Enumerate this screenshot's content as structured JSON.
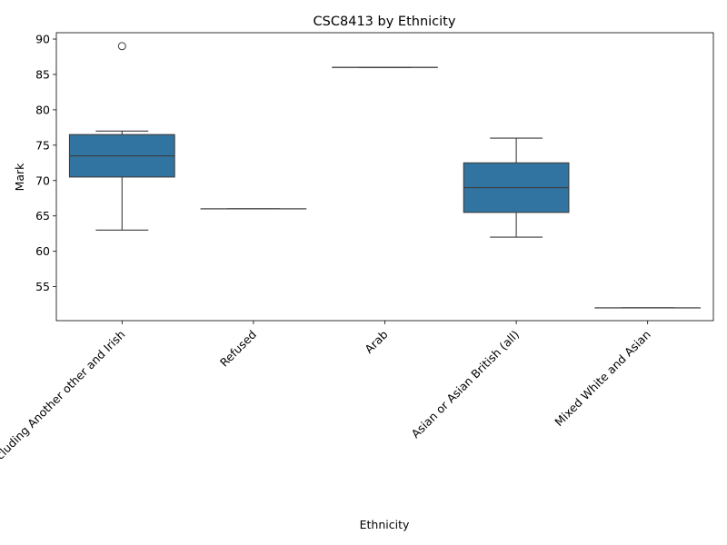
{
  "chart_data": {
    "type": "box",
    "title": "CSC8413 by Ethnicity",
    "xlabel": "Ethnicity",
    "ylabel": "Mark",
    "ylim": [
      50.2,
      90.9
    ],
    "yticks": [
      55,
      60,
      65,
      70,
      75,
      80,
      85,
      90
    ],
    "grid": false,
    "color": "#3274a1",
    "categories": [
      "White including Another other and Irish",
      "Refused",
      "Arab",
      "Asian or Asian British (all)",
      "Mixed White and Asian"
    ],
    "boxes": [
      {
        "whisker_low": 63,
        "q1": 70.5,
        "median": 73.5,
        "q3": 76.5,
        "whisker_high": 77,
        "outliers": [
          89
        ]
      },
      {
        "whisker_low": 66,
        "q1": 66,
        "median": 66,
        "q3": 66,
        "whisker_high": 66,
        "outliers": []
      },
      {
        "whisker_low": 86,
        "q1": 86,
        "median": 86,
        "q3": 86,
        "whisker_high": 86,
        "outliers": []
      },
      {
        "whisker_low": 62,
        "q1": 65.5,
        "median": 69,
        "q3": 72.5,
        "whisker_high": 76,
        "outliers": []
      },
      {
        "whisker_low": 52,
        "q1": 52,
        "median": 52,
        "q3": 52,
        "whisker_high": 52,
        "outliers": []
      }
    ]
  }
}
